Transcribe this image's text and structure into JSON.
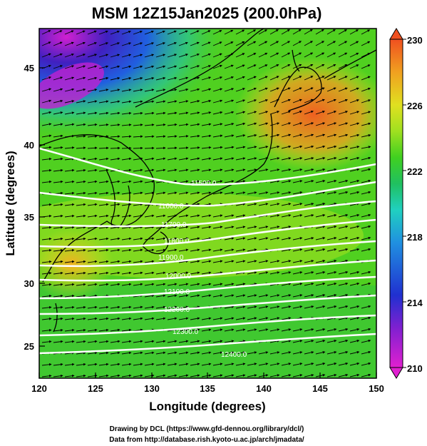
{
  "title": "MSM 12Z15Jan2025 (200.0hPa)",
  "xlabel": "Longitude (degrees)",
  "ylabel": "Latitude  (degrees)",
  "credits": {
    "line1": "Drawing by DCL (https://www.gfd-dennou.org/library/dcl/)",
    "line2": "Data from http://database.rish.kyoto-u.ac.jp/arch/jmadata/"
  },
  "axes": {
    "x_ticks": [
      "120",
      "125",
      "130",
      "135",
      "140",
      "145",
      "150"
    ],
    "y_ticks": [
      "25",
      "30",
      "35",
      "40",
      "45"
    ],
    "xlim": [
      120,
      150
    ],
    "ylim": [
      22.5,
      48
    ]
  },
  "colorbar": {
    "ticks": [
      "210",
      "214",
      "218",
      "222",
      "226",
      "230"
    ],
    "range": [
      210,
      230
    ],
    "colors": [
      "#e020d0",
      "#8020d0",
      "#2030d0",
      "#2090e0",
      "#20d0c0",
      "#20c060",
      "#40d020",
      "#a0e020",
      "#e0e020",
      "#f0a020",
      "#f05020"
    ]
  },
  "contours": {
    "unit": "geopotential height (m)",
    "labels": [
      "11500.0",
      "11600.0",
      "11700.0",
      "11800.0",
      "11900.0",
      "12000.0",
      "12100.0",
      "12200.0",
      "12300.0",
      "12400.0"
    ]
  },
  "chart_data": {
    "type": "heatmap",
    "title": "MSM 12Z15Jan2025 (200.0hPa)",
    "xlabel": "Longitude (degrees)",
    "ylabel": "Latitude  (degrees)",
    "xlim": [
      120,
      150
    ],
    "ylim": [
      22.5,
      48
    ],
    "shading": "temperature (K)",
    "shading_range": [
      210,
      230
    ],
    "contour_levels_m": [
      11500,
      11600,
      11700,
      11800,
      11900,
      12000,
      12100,
      12200,
      12300,
      12400
    ],
    "vectors": "wind, predominantly westerly to west-southwesterly"
  }
}
